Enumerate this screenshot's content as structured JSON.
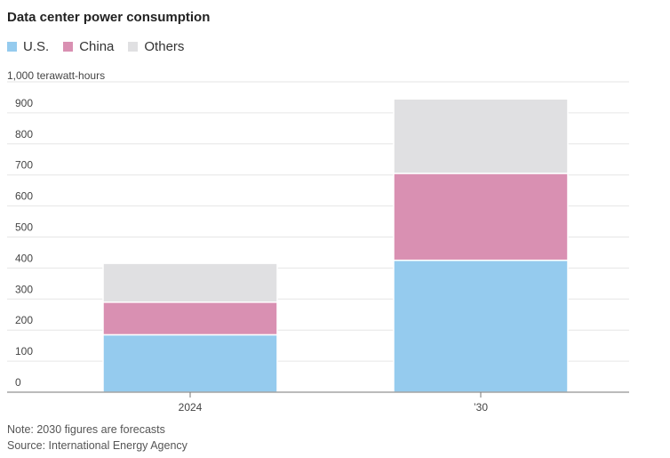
{
  "chart_data": {
    "type": "bar",
    "stacked": true,
    "title": "Data center power consumption",
    "unit_label": "1,000 terawatt-hours",
    "categories": [
      "2024",
      "’30"
    ],
    "series": [
      {
        "name": "U.S.",
        "values": [
          185,
          425
        ],
        "color": "#95cbee"
      },
      {
        "name": "China",
        "values": [
          105,
          280
        ],
        "color": "#d990b2"
      },
      {
        "name": "Others",
        "values": [
          125,
          240
        ],
        "color": "#e0e0e2"
      }
    ],
    "ylim": [
      0,
      1000
    ],
    "yticks": [
      "0",
      "100",
      "200",
      "300",
      "400",
      "500",
      "600",
      "700",
      "800",
      "900"
    ],
    "grid": true,
    "legend_position": "top-left"
  },
  "notes": {
    "note": "Note: 2030 figures are forecasts",
    "source": "Source: International Energy Agency"
  }
}
